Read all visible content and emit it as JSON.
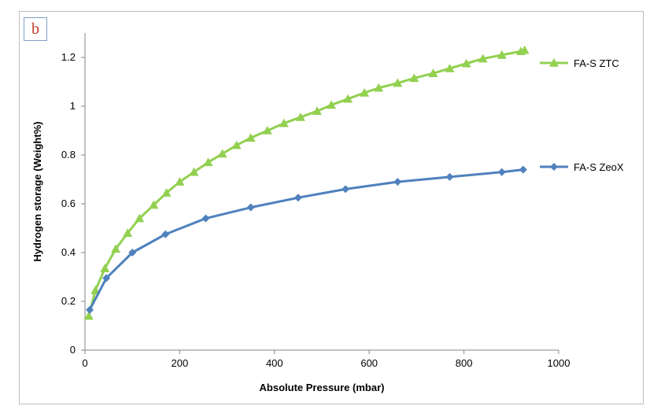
{
  "panel_label": "b",
  "chart_data": {
    "type": "line",
    "title": "",
    "xlabel": "Absolute Pressure (mbar)",
    "ylabel": "Hydrogen storage (Weight%)",
    "xlim": [
      0,
      1000
    ],
    "ylim": [
      0,
      1.3
    ],
    "xticks": [
      0,
      200,
      400,
      600,
      800,
      1000
    ],
    "yticks": [
      0,
      0.2,
      0.4,
      0.6,
      0.8,
      1,
      1.2
    ],
    "xtick_labels": [
      "0",
      "200",
      "400",
      "600",
      "800",
      "1000"
    ],
    "ytick_labels": [
      "0",
      "0.2",
      "0.4",
      "0.6",
      "0.8",
      "1",
      "1.2"
    ],
    "grid": false,
    "legend_position": "right",
    "series": [
      {
        "name": "FA-S ZTC",
        "color": "#92d050",
        "marker": "triangle",
        "x": [
          8,
          22,
          42,
          65,
          90,
          115,
          145,
          172,
          200,
          230,
          260,
          290,
          320,
          350,
          385,
          420,
          455,
          490,
          520,
          555,
          590,
          620,
          660,
          695,
          735,
          770,
          805,
          840,
          880,
          920,
          928
        ],
        "y": [
          0.14,
          0.245,
          0.335,
          0.415,
          0.48,
          0.54,
          0.595,
          0.645,
          0.69,
          0.73,
          0.77,
          0.805,
          0.84,
          0.87,
          0.9,
          0.93,
          0.955,
          0.98,
          1.005,
          1.03,
          1.055,
          1.075,
          1.095,
          1.115,
          1.135,
          1.155,
          1.175,
          1.195,
          1.21,
          1.225,
          1.23
        ]
      },
      {
        "name": "FA-S ZeoX",
        "color": "#4f81bd",
        "marker": "diamond",
        "x": [
          10,
          45,
          100,
          170,
          255,
          350,
          450,
          550,
          660,
          770,
          880,
          925
        ],
        "y": [
          0.165,
          0.295,
          0.4,
          0.475,
          0.54,
          0.585,
          0.625,
          0.66,
          0.69,
          0.71,
          0.73,
          0.74
        ]
      }
    ]
  }
}
